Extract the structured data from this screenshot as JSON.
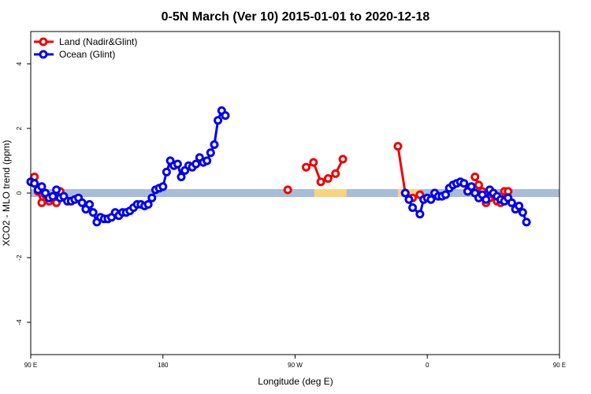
{
  "chart_data": {
    "type": "line",
    "title": "0-5N March (Ver 10)   2015-01-01 to 2020-12-18",
    "xlabel": "Longitude (deg E)",
    "ylabel": "XCO2 - MLO trend (ppm)",
    "xlim": [
      90,
      450
    ],
    "ylim": [
      -5,
      5
    ],
    "x_ticks": [
      {
        "value": 90,
        "label": "90 E"
      },
      {
        "value": 180,
        "label": "180"
      },
      {
        "value": 270,
        "label": "90 W"
      },
      {
        "value": 360,
        "label": "0"
      },
      {
        "value": 450,
        "label": "90 E"
      },
      {
        "value": 540,
        "label": "180"
      }
    ],
    "y_ticks": [
      -4,
      -2,
      0,
      2,
      4
    ],
    "grid": false,
    "legend_position": "top-left",
    "series": [
      {
        "name": "Land (Nadir&Glint)",
        "color": "#ee0000",
        "segments": [
          [
            [
              92.5,
              0.5
            ],
            [
              95,
              0.05
            ],
            [
              97.5,
              -0.3
            ],
            [
              100,
              -0.05
            ],
            [
              102.5,
              -0.25
            ],
            [
              105,
              -0.15
            ],
            [
              107.5,
              -0.3
            ],
            [
              110,
              0.05
            ]
          ],
          [
            [
              265,
              0.1
            ]
          ],
          [
            [
              277.5,
              0.8
            ],
            [
              282.5,
              0.95
            ],
            [
              287.5,
              0.35
            ],
            [
              292.5,
              0.45
            ],
            [
              297.5,
              0.6
            ],
            [
              302.5,
              1.05
            ]
          ],
          [
            [
              340,
              1.45
            ],
            [
              345,
              0.0
            ],
            [
              350,
              -0.15
            ],
            [
              355,
              -0.05
            ]
          ],
          [
            [
              392.5,
              0.5
            ],
            [
              395,
              0.25
            ],
            [
              397.5,
              0.05
            ],
            [
              400,
              -0.3
            ],
            [
              402.5,
              -0.15
            ],
            [
              405,
              -0.05
            ],
            [
              407.5,
              -0.25
            ],
            [
              410,
              -0.3
            ],
            [
              412.5,
              0.05
            ],
            [
              415,
              0.05
            ]
          ]
        ]
      },
      {
        "name": "Ocean (Glint)",
        "color": "#0000ee",
        "segments": [
          [
            [
              90,
              0.35
            ],
            [
              92.5,
              0.3
            ],
            [
              95,
              0.1
            ],
            [
              97.5,
              0.2
            ],
            [
              100,
              0.0
            ],
            [
              102.5,
              -0.15
            ],
            [
              105,
              -0.1
            ],
            [
              107.5,
              0.1
            ],
            [
              110,
              -0.15
            ],
            [
              112.5,
              -0.1
            ],
            [
              115,
              -0.25
            ],
            [
              117.5,
              -0.25
            ],
            [
              120,
              -0.2
            ],
            [
              122.5,
              -0.15
            ],
            [
              125,
              -0.3
            ],
            [
              127.5,
              -0.5
            ],
            [
              130,
              -0.35
            ],
            [
              132.5,
              -0.6
            ],
            [
              135,
              -0.9
            ],
            [
              137.5,
              -0.75
            ],
            [
              140,
              -0.8
            ],
            [
              142.5,
              -0.8
            ],
            [
              145,
              -0.75
            ],
            [
              147.5,
              -0.6
            ],
            [
              150,
              -0.7
            ],
            [
              152.5,
              -0.6
            ],
            [
              155,
              -0.6
            ],
            [
              157.5,
              -0.55
            ],
            [
              160,
              -0.45
            ],
            [
              162.5,
              -0.35
            ],
            [
              165,
              -0.35
            ],
            [
              167.5,
              -0.4
            ],
            [
              170,
              -0.35
            ],
            [
              172.5,
              -0.15
            ],
            [
              175,
              0.1
            ],
            [
              177.5,
              0.15
            ],
            [
              180,
              0.2
            ],
            [
              182.5,
              0.65
            ],
            [
              185,
              1.0
            ],
            [
              187.5,
              0.85
            ],
            [
              190,
              0.9
            ],
            [
              192.5,
              0.5
            ],
            [
              195,
              0.7
            ],
            [
              197.5,
              0.85
            ],
            [
              200,
              0.8
            ],
            [
              202.5,
              0.9
            ],
            [
              205,
              1.1
            ],
            [
              207.5,
              0.95
            ],
            [
              210,
              1.0
            ],
            [
              212.5,
              1.25
            ],
            [
              215,
              1.5
            ],
            [
              217.5,
              2.25
            ],
            [
              220,
              2.55
            ],
            [
              222.5,
              2.4
            ]
          ],
          [
            [
              345,
              0.0
            ],
            [
              347.5,
              -0.2
            ],
            [
              350,
              -0.45
            ],
            [
              355,
              -0.65
            ],
            [
              357.5,
              -0.2
            ],
            [
              360,
              -0.15
            ],
            [
              362.5,
              -0.2
            ],
            [
              365,
              0.0
            ],
            [
              367.5,
              -0.1
            ],
            [
              370,
              -0.1
            ],
            [
              372.5,
              -0.05
            ],
            [
              375,
              0.15
            ],
            [
              377.5,
              0.25
            ],
            [
              380,
              0.3
            ],
            [
              382.5,
              0.35
            ],
            [
              385,
              0.3
            ],
            [
              387.5,
              0.05
            ],
            [
              390,
              0.2
            ],
            [
              392.5,
              0.0
            ],
            [
              395,
              -0.15
            ],
            [
              397.5,
              -0.05
            ],
            [
              400,
              -0.2
            ],
            [
              402.5,
              0.1
            ],
            [
              405,
              0.0
            ],
            [
              407.5,
              -0.1
            ],
            [
              410,
              -0.2
            ],
            [
              412.5,
              -0.25
            ],
            [
              415,
              -0.15
            ],
            [
              417.5,
              -0.3
            ],
            [
              420,
              -0.5
            ],
            [
              422.5,
              -0.4
            ],
            [
              425,
              -0.6
            ],
            [
              427.5,
              -0.9
            ]
          ]
        ]
      }
    ],
    "band": {
      "y": 0,
      "base_color": "#a7bcd9",
      "land_color": "#f8d47c",
      "land_ranges": [
        [
          283,
          305
        ],
        [
          340,
          355
        ]
      ]
    }
  }
}
